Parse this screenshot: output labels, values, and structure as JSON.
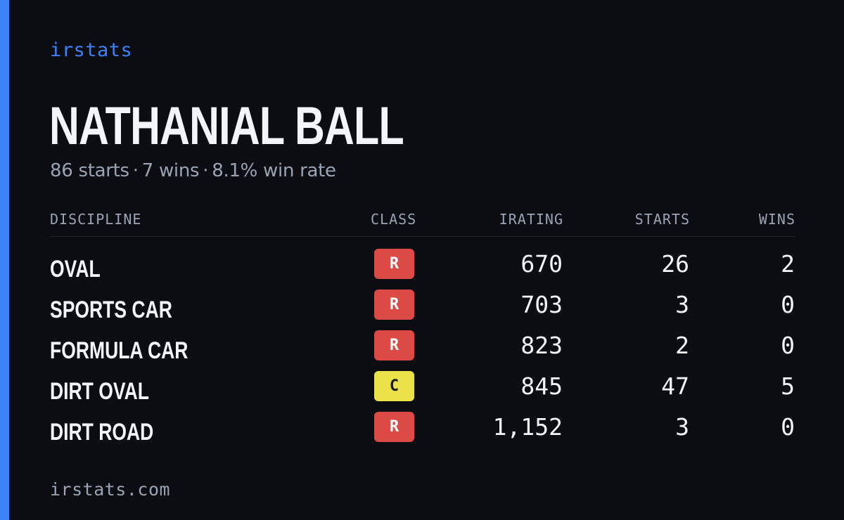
{
  "brand": "irstats",
  "accent_color": "#3b82f6",
  "player": {
    "name": "NATHANIAL BALL",
    "starts_text": "86 starts",
    "wins_text": "7 wins",
    "win_rate_text": "8.1% win rate",
    "separator": "·"
  },
  "table": {
    "headers": {
      "discipline": "DISCIPLINE",
      "class": "CLASS",
      "irating": "IRATING",
      "starts": "STARTS",
      "wins": "WINS"
    },
    "rows": [
      {
        "discipline": "OVAL",
        "class": "R",
        "class_bg": "#dc4a46",
        "class_fg": "#ffffff",
        "irating": "670",
        "starts": "26",
        "wins": "2"
      },
      {
        "discipline": "SPORTS CAR",
        "class": "R",
        "class_bg": "#dc4a46",
        "class_fg": "#ffffff",
        "irating": "703",
        "starts": "3",
        "wins": "0"
      },
      {
        "discipline": "FORMULA CAR",
        "class": "R",
        "class_bg": "#dc4a46",
        "class_fg": "#ffffff",
        "irating": "823",
        "starts": "2",
        "wins": "0"
      },
      {
        "discipline": "DIRT OVAL",
        "class": "C",
        "class_bg": "#ebe24a",
        "class_fg": "#1a1a1a",
        "irating": "845",
        "starts": "47",
        "wins": "5"
      },
      {
        "discipline": "DIRT ROAD",
        "class": "R",
        "class_bg": "#dc4a46",
        "class_fg": "#ffffff",
        "irating": "1,152",
        "starts": "3",
        "wins": "0"
      }
    ]
  },
  "footer": "irstats.com"
}
